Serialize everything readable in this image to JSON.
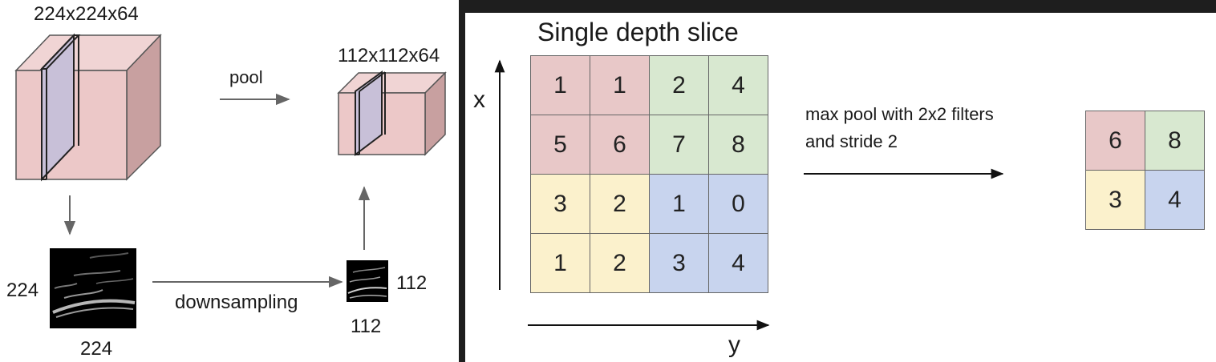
{
  "colors": {
    "red": "#e8c8c8",
    "green": "#d8e8d0",
    "yellow": "#fbf1cc",
    "blue": "#c8d4ee",
    "cube_front": "#ecc8c8",
    "cube_top": "#f0d4d4",
    "cube_side": "#c8a0a0",
    "slice": "#c8c0d8"
  },
  "left": {
    "big_volume_label": "224x224x64",
    "small_volume_label": "112x112x64",
    "pool_label": "pool",
    "downsampling_label": "downsampling",
    "big_image_height_label": "224",
    "big_image_width_label": "224",
    "small_image_height_label": "112",
    "small_image_width_label": "112"
  },
  "right": {
    "title": "Single depth slice",
    "x_axis_label": "x",
    "y_axis_label": "y",
    "operation_line1": "max pool with 2x2 filters",
    "operation_line2": "and stride 2",
    "input_grid": [
      [
        {
          "value": "1",
          "color": "red"
        },
        {
          "value": "1",
          "color": "red"
        },
        {
          "value": "2",
          "color": "green"
        },
        {
          "value": "4",
          "color": "green"
        }
      ],
      [
        {
          "value": "5",
          "color": "red"
        },
        {
          "value": "6",
          "color": "red"
        },
        {
          "value": "7",
          "color": "green"
        },
        {
          "value": "8",
          "color": "green"
        }
      ],
      [
        {
          "value": "3",
          "color": "yellow"
        },
        {
          "value": "2",
          "color": "yellow"
        },
        {
          "value": "1",
          "color": "blue"
        },
        {
          "value": "0",
          "color": "blue"
        }
      ],
      [
        {
          "value": "1",
          "color": "yellow"
        },
        {
          "value": "2",
          "color": "yellow"
        },
        {
          "value": "3",
          "color": "blue"
        },
        {
          "value": "4",
          "color": "blue"
        }
      ]
    ],
    "output_grid": [
      [
        {
          "value": "6",
          "color": "red"
        },
        {
          "value": "8",
          "color": "green"
        }
      ],
      [
        {
          "value": "3",
          "color": "yellow"
        },
        {
          "value": "4",
          "color": "blue"
        }
      ]
    ]
  }
}
